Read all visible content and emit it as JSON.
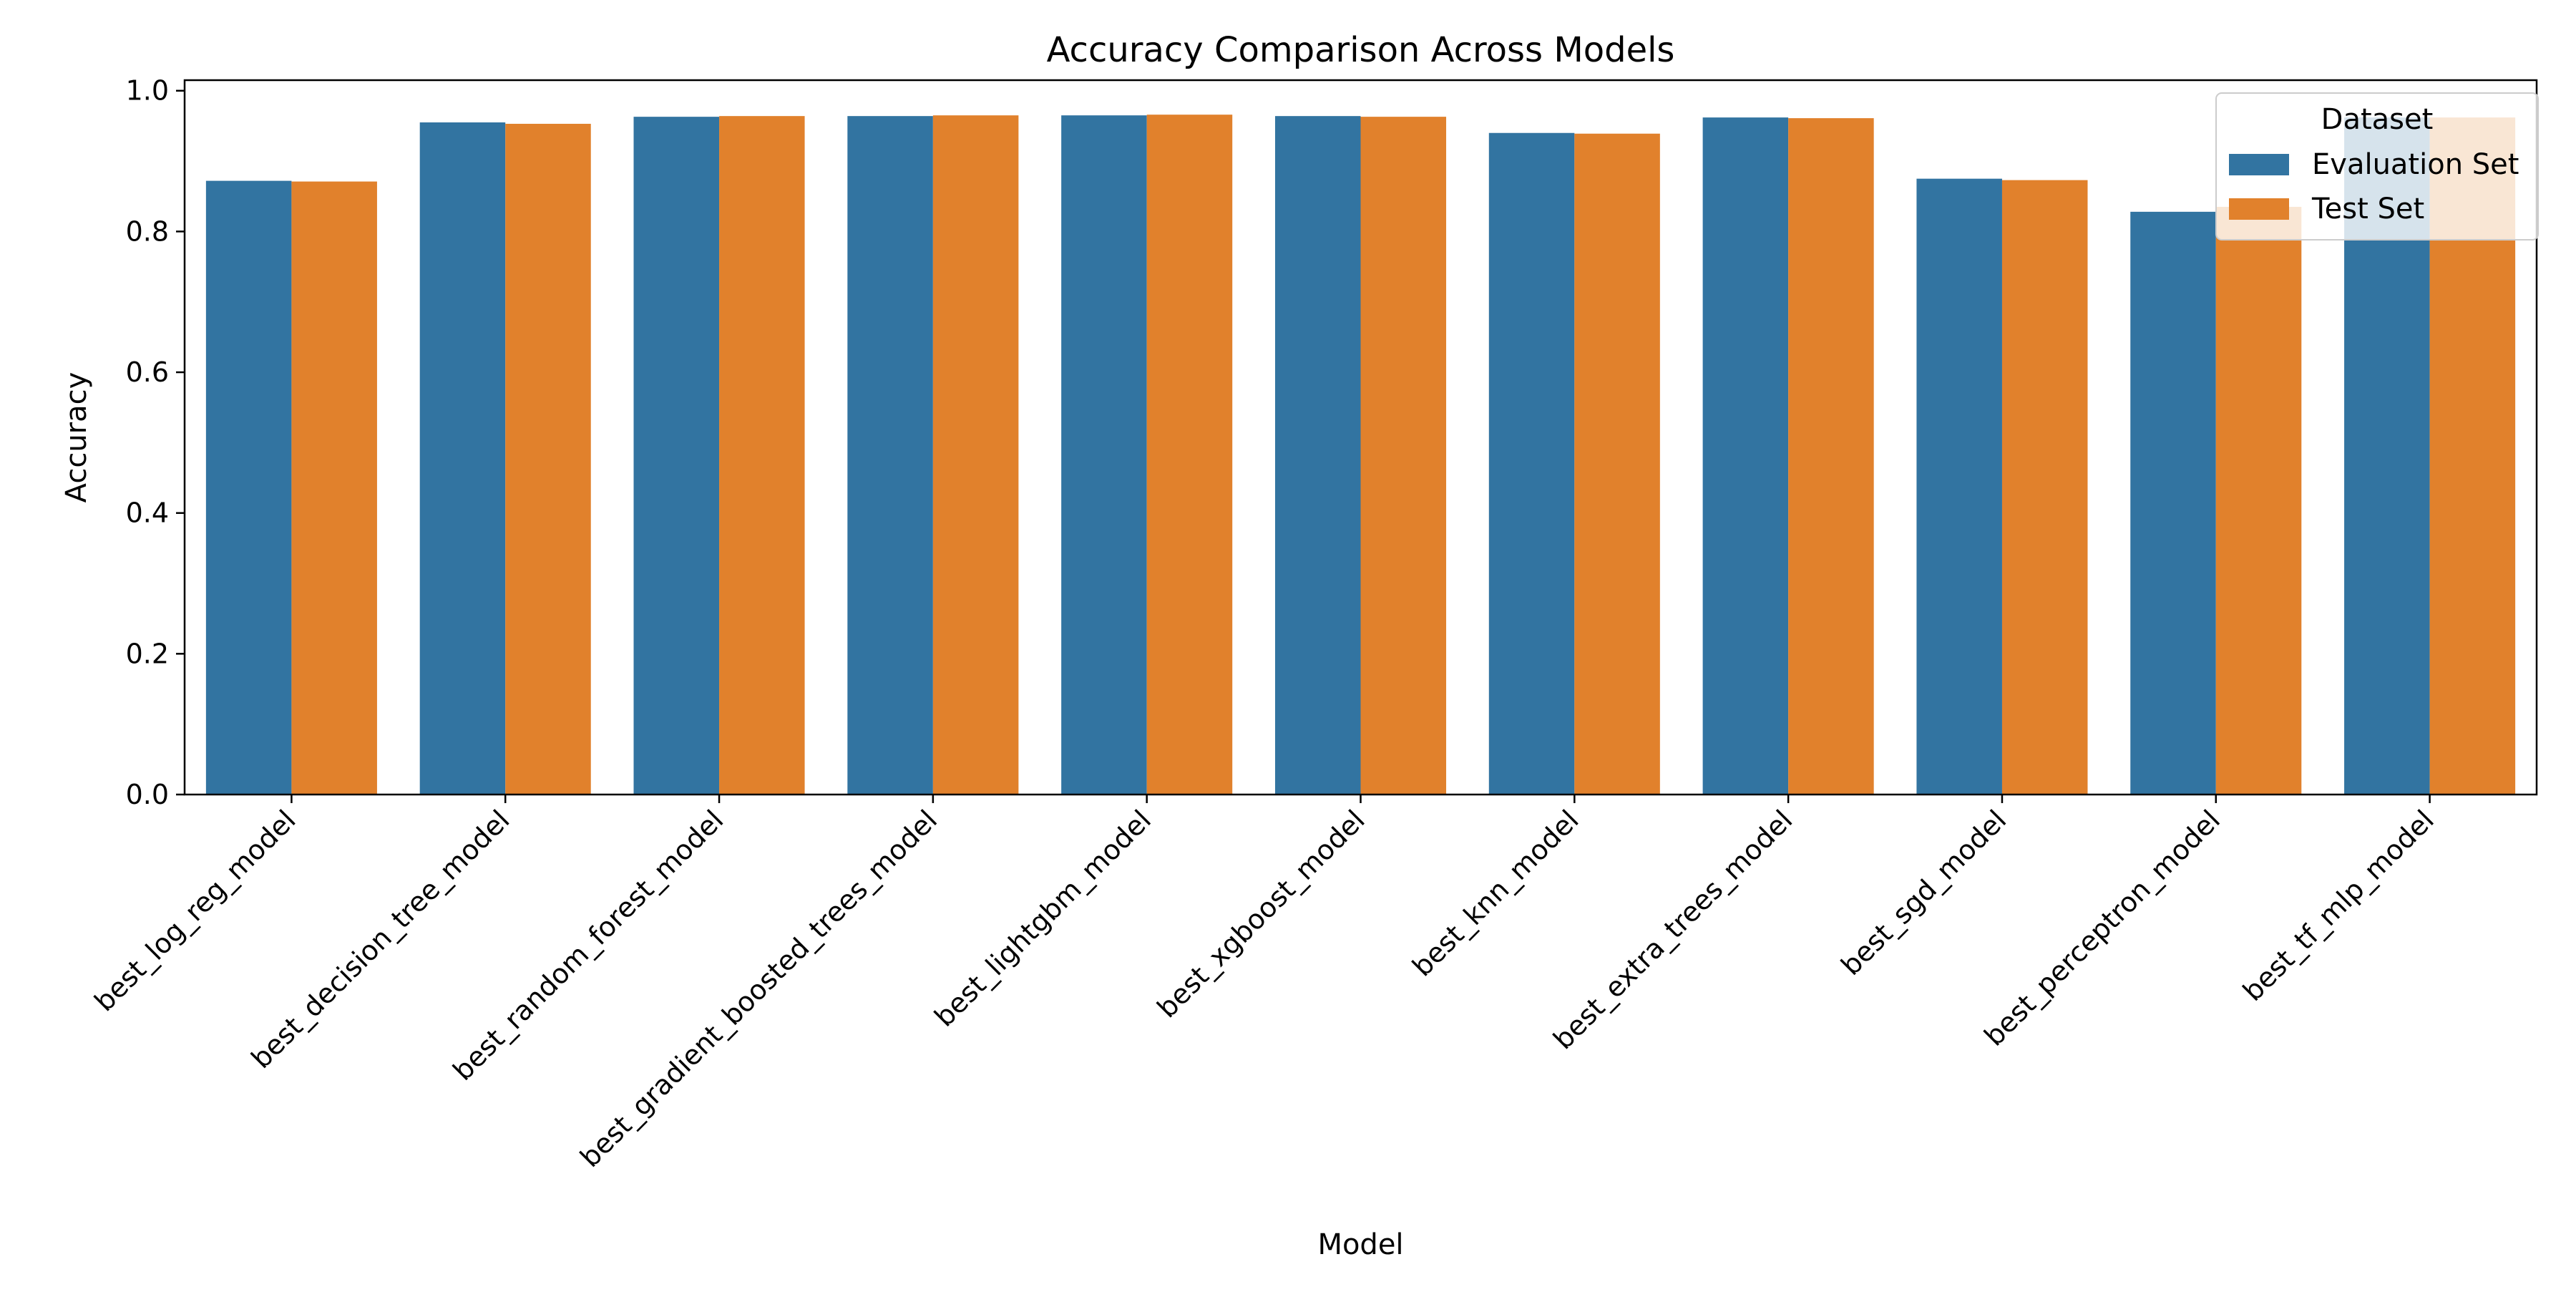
{
  "chart_data": {
    "type": "bar",
    "title": "Accuracy Comparison Across Models",
    "xlabel": "Model",
    "ylabel": "Accuracy",
    "ylim": [
      0,
      1.015
    ],
    "yticks": [
      0.0,
      0.2,
      0.4,
      0.6,
      0.8,
      1.0
    ],
    "ytick_labels": [
      "0.0",
      "0.2",
      "0.4",
      "0.6",
      "0.8",
      "1.0"
    ],
    "categories": [
      "best_log_reg_model",
      "best_decision_tree_model",
      "best_random_forest_model",
      "best_gradient_boosted_trees_model",
      "best_lightgbm_model",
      "best_xgboost_model",
      "best_knn_model",
      "best_extra_trees_model",
      "best_sgd_model",
      "best_perceptron_model",
      "best_tf_mlp_model"
    ],
    "series": [
      {
        "name": "Evaluation Set",
        "color": "#3274a1",
        "values": [
          0.872,
          0.955,
          0.963,
          0.964,
          0.965,
          0.964,
          0.94,
          0.962,
          0.875,
          0.828,
          0.962
        ]
      },
      {
        "name": "Test Set",
        "color": "#e1812c",
        "values": [
          0.871,
          0.953,
          0.964,
          0.965,
          0.966,
          0.963,
          0.939,
          0.961,
          0.873,
          0.835,
          0.962
        ]
      }
    ],
    "legend": {
      "title": "Dataset",
      "placement": "top-right"
    },
    "grid": false
  }
}
